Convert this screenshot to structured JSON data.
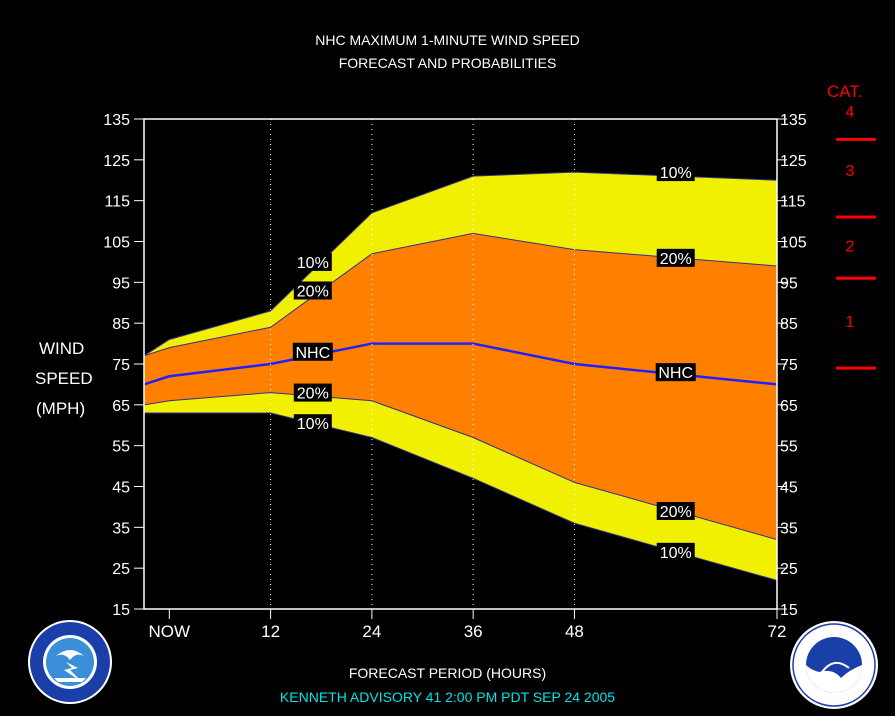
{
  "title_line1": "NHC MAXIMUM 1-MINUTE WIND SPEED",
  "title_line2": "FORECAST AND PROBABILITIES",
  "ylabel": [
    "WIND",
    "SPEED",
    "(MPH)"
  ],
  "xlabel": "FORECAST PERIOD (HOURS)",
  "advisory": "KENNETH   ADVISORY  41  2:00  PM  PDT  SEP  24  2005",
  "category_header": "CAT.",
  "categories": [
    {
      "label": "4",
      "mid": 137
    },
    {
      "label": "3",
      "mid": 122.5
    },
    {
      "label": "2",
      "mid": 104
    },
    {
      "label": "1",
      "mid": 85.5
    }
  ],
  "category_boundaries": [
    130,
    111,
    96,
    74
  ],
  "colors": {
    "background": "#000000",
    "outer_band": "#f0f000",
    "inner_band": "#ff8000",
    "nhc_line": "#2020ff",
    "category": "#ff0000",
    "advisory_text": "#00e5e5"
  },
  "chart_data": {
    "type": "area",
    "ylim": [
      15,
      135
    ],
    "yticks": [
      15,
      25,
      35,
      45,
      55,
      65,
      75,
      85,
      95,
      105,
      115,
      125,
      135
    ],
    "xlim": [
      -3,
      72
    ],
    "xticks": [
      {
        "value": 0,
        "label": "NOW"
      },
      {
        "value": 12,
        "label": "12"
      },
      {
        "value": 24,
        "label": "24"
      },
      {
        "value": 36,
        "label": "36"
      },
      {
        "value": 48,
        "label": "48"
      },
      {
        "value": 72,
        "label": "72"
      }
    ],
    "x": [
      -3,
      0,
      12,
      24,
      36,
      48,
      72
    ],
    "series": [
      {
        "name": "10%",
        "role": "upper",
        "values": [
          77,
          81,
          88,
          112,
          121,
          122,
          120
        ]
      },
      {
        "name": "20%",
        "role": "upper",
        "values": [
          77,
          79,
          84,
          102,
          107,
          103,
          99
        ]
      },
      {
        "name": "NHC",
        "role": "forecast",
        "values": [
          70,
          72,
          75,
          80,
          80,
          75,
          70
        ]
      },
      {
        "name": "20%",
        "role": "lower",
        "values": [
          65,
          66,
          68,
          66,
          57,
          46,
          32
        ]
      },
      {
        "name": "10%",
        "role": "lower",
        "values": [
          63,
          63,
          63,
          57,
          47,
          36,
          22
        ]
      }
    ],
    "annotations": [
      {
        "text": "10%",
        "x": 17,
        "y": 100
      },
      {
        "text": "20%",
        "x": 17,
        "y": 93
      },
      {
        "text": "NHC",
        "x": 17,
        "y": 78
      },
      {
        "text": "20%",
        "x": 17,
        "y": 68
      },
      {
        "text": "10%",
        "x": 17,
        "y": 60.5
      },
      {
        "text": "10%",
        "x": 60,
        "y": 122
      },
      {
        "text": "20%",
        "x": 60,
        "y": 101
      },
      {
        "text": "NHC",
        "x": 60,
        "y": 73
      },
      {
        "text": "20%",
        "x": 60,
        "y": 39
      },
      {
        "text": "10%",
        "x": 60,
        "y": 29
      }
    ]
  }
}
